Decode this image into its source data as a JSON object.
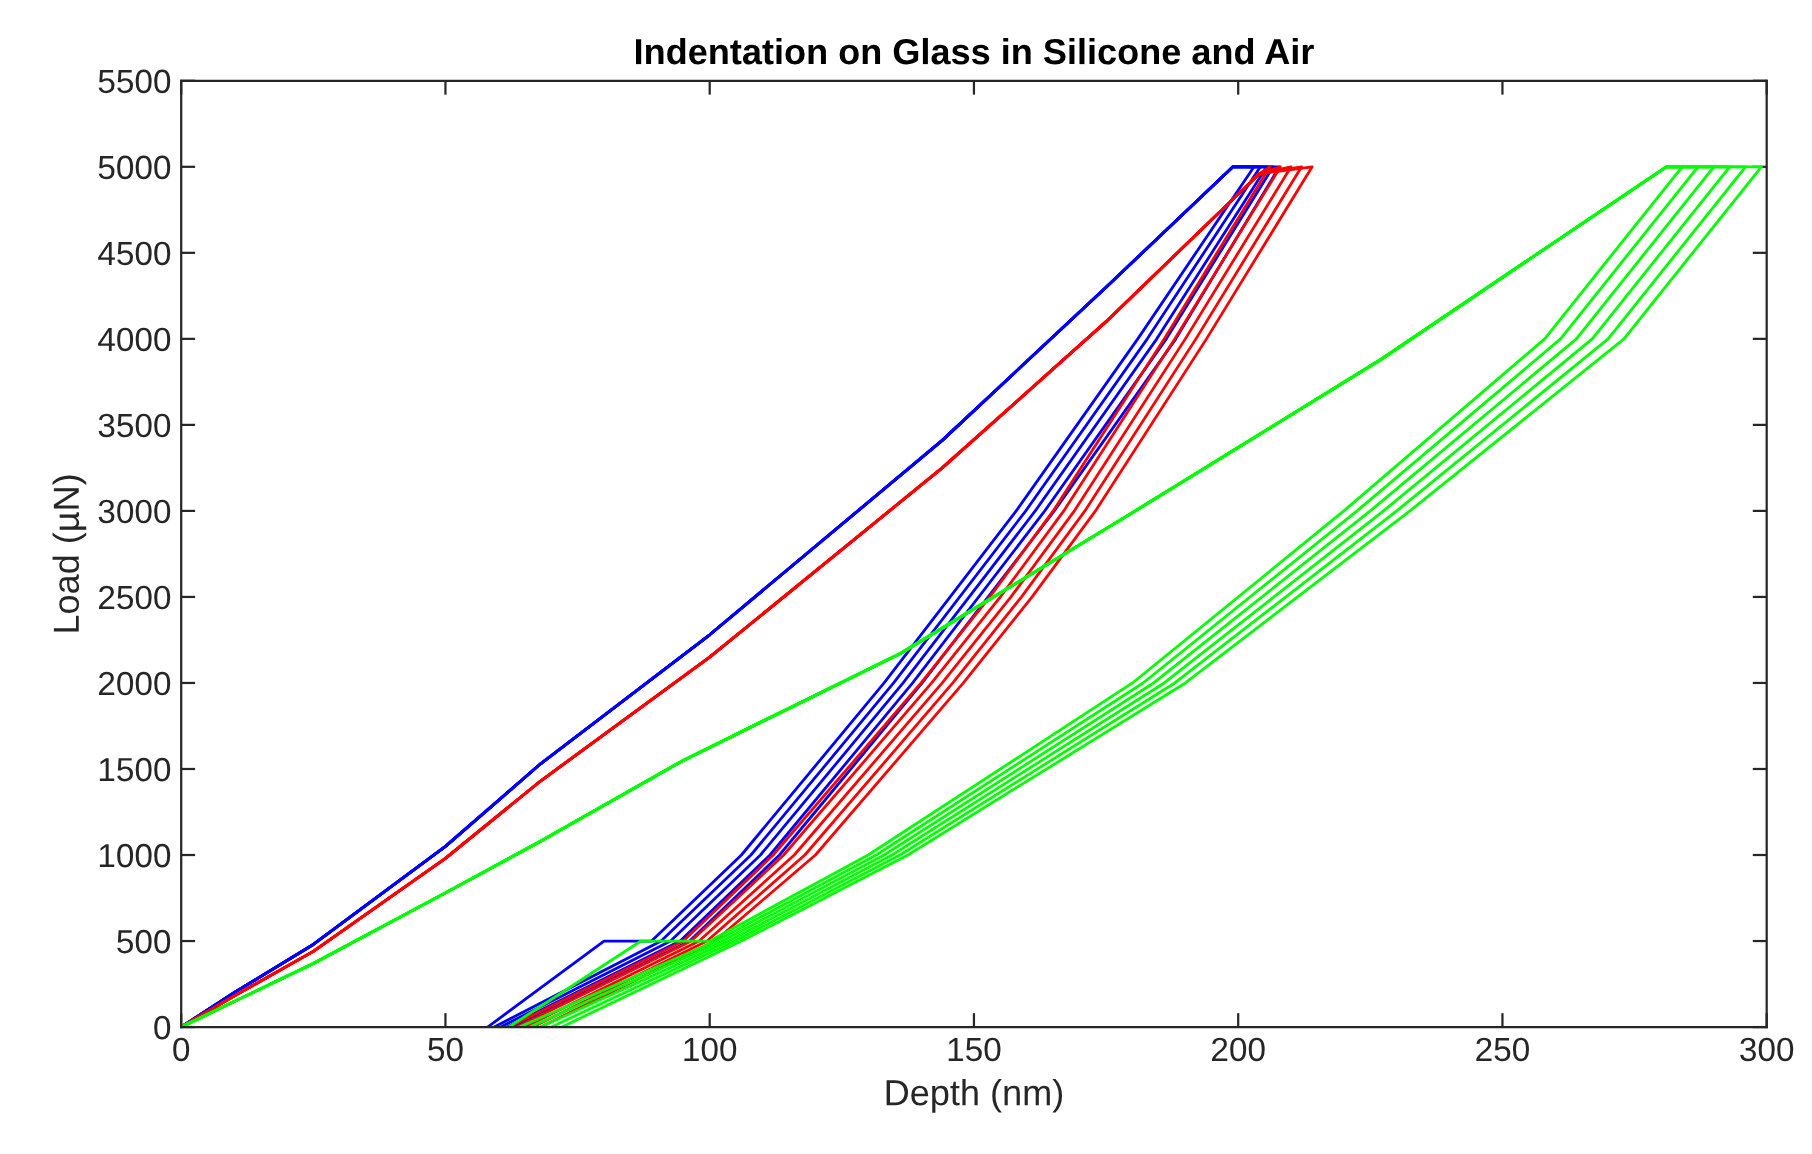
{
  "chart_data": {
    "type": "line",
    "title": "Indentation on Glass in Silicone and Air",
    "xlabel": "Depth (nm)",
    "ylabel": "Load (µN)",
    "xlim": [
      0,
      300
    ],
    "xticks": [
      0,
      50,
      100,
      150,
      200,
      250,
      300
    ],
    "ylim": [
      0,
      5500
    ],
    "yticks": [
      0,
      500,
      1000,
      1500,
      2000,
      2500,
      3000,
      3500,
      4000,
      4500,
      5000,
      5500
    ],
    "grid": false,
    "marker": "none",
    "line_style": "solid",
    "series": [
      {
        "color": "#0000ff",
        "x": [
          0,
          10,
          25,
          50,
          68,
          100,
          144,
          175,
          199,
          203,
          181,
          158,
          133,
          106,
          89,
          80,
          58
        ],
        "values": [
          0,
          200,
          480,
          1050,
          1530,
          2280,
          3410,
          4300,
          5000,
          5000,
          4000,
          3000,
          2000,
          1000,
          500,
          500,
          0
        ]
      },
      {
        "color": "#0000ff",
        "x": [
          0,
          10,
          25,
          50,
          68,
          100,
          144,
          175,
          199,
          204.2,
          182.8,
          159.8,
          134.8,
          107.8,
          90.8,
          59.2
        ],
        "values": [
          0,
          200,
          480,
          1050,
          1530,
          2280,
          3410,
          4300,
          5000,
          5000,
          4000,
          3000,
          2000,
          1000,
          500,
          0
        ]
      },
      {
        "color": "#0000ff",
        "x": [
          0,
          10,
          25,
          50,
          68,
          100,
          144,
          175,
          199,
          205.4,
          184.6,
          161.6,
          136.6,
          109.6,
          92.6,
          60.4
        ],
        "values": [
          0,
          200,
          480,
          1050,
          1530,
          2280,
          3410,
          4300,
          5000,
          5000,
          4000,
          3000,
          2000,
          1000,
          500,
          0
        ]
      },
      {
        "color": "#0000ff",
        "x": [
          0,
          10,
          25,
          50,
          68,
          100,
          144,
          175,
          199,
          206.6,
          186.4,
          163.4,
          138.4,
          111.4,
          94.4,
          61.6
        ],
        "values": [
          0,
          200,
          480,
          1050,
          1530,
          2280,
          3410,
          4300,
          5000,
          5000,
          4000,
          3000,
          2000,
          1000,
          500,
          0
        ]
      },
      {
        "color": "#0000ff",
        "x": [
          0,
          10,
          25,
          50,
          68,
          100,
          144,
          175,
          199,
          207.8,
          188.2,
          165.2,
          140.2,
          113.2,
          96.2,
          62.8
        ],
        "values": [
          0,
          200,
          480,
          1050,
          1530,
          2280,
          3410,
          4300,
          5000,
          5000,
          4000,
          3000,
          2000,
          1000,
          500,
          0
        ]
      },
      {
        "color": "#ff0000",
        "x": [
          0,
          10,
          25,
          50,
          68,
          100,
          144,
          175,
          204,
          206,
          186,
          165,
          153,
          140,
          112,
          95,
          62
        ],
        "values": [
          0,
          180,
          440,
          980,
          1430,
          2150,
          3250,
          4100,
          4960,
          5000,
          4000,
          3000,
          2500,
          2000,
          1000,
          500,
          0
        ]
      },
      {
        "color": "#ff0000",
        "x": [
          0,
          10,
          25,
          50,
          68,
          100,
          144,
          175,
          204,
          208,
          188,
          167,
          155,
          142,
          114,
          96.5,
          63.5
        ],
        "values": [
          0,
          180,
          440,
          980,
          1430,
          2150,
          3250,
          4100,
          4960,
          5000,
          4000,
          3000,
          2500,
          2000,
          1000,
          500,
          0
        ]
      },
      {
        "color": "#ff0000",
        "x": [
          0,
          10,
          25,
          50,
          68,
          100,
          144,
          175,
          204,
          210,
          190,
          169,
          157,
          144,
          116,
          98,
          65
        ],
        "values": [
          0,
          180,
          440,
          980,
          1430,
          2150,
          3250,
          4100,
          4960,
          5000,
          4000,
          3000,
          2500,
          2000,
          1000,
          500,
          0
        ]
      },
      {
        "color": "#ff0000",
        "x": [
          0,
          10,
          25,
          50,
          68,
          100,
          144,
          175,
          204,
          212,
          192,
          171,
          159,
          146,
          118,
          99.5,
          66.5
        ],
        "values": [
          0,
          180,
          440,
          980,
          1430,
          2150,
          3250,
          4100,
          4960,
          5000,
          4000,
          3000,
          2500,
          2000,
          1000,
          500,
          0
        ]
      },
      {
        "color": "#ff0000",
        "x": [
          0,
          10,
          25,
          50,
          68,
          100,
          144,
          175,
          204,
          214,
          194,
          173,
          161,
          148,
          120,
          101,
          68
        ],
        "values": [
          0,
          180,
          440,
          980,
          1430,
          2150,
          3250,
          4100,
          4960,
          5000,
          4000,
          3000,
          2500,
          2000,
          1000,
          500,
          0
        ]
      },
      {
        "color": "#00ff00",
        "x": [
          0,
          25,
          50,
          68,
          95,
          136,
          180,
          227,
          281,
          284,
          258,
          220,
          180,
          130,
          100,
          87,
          62
        ],
        "values": [
          0,
          370,
          780,
          1080,
          1550,
          2170,
          2990,
          3880,
          5000,
          5000,
          4000,
          3000,
          2000,
          1000,
          500,
          500,
          0
        ]
      },
      {
        "color": "#00ff00",
        "x": [
          0,
          25,
          50,
          68,
          95,
          136,
          180,
          227,
          281,
          287,
          261,
          222.5,
          182,
          131.5,
          101.2,
          64
        ],
        "values": [
          0,
          370,
          780,
          1080,
          1550,
          2170,
          2990,
          3880,
          5000,
          5000,
          4000,
          3000,
          2000,
          1000,
          500,
          0
        ]
      },
      {
        "color": "#00ff00",
        "x": [
          0,
          25,
          50,
          68,
          95,
          136,
          180,
          227,
          281,
          290,
          264,
          225,
          184,
          133,
          102.4,
          66
        ],
        "values": [
          0,
          370,
          780,
          1080,
          1550,
          2170,
          2990,
          3880,
          5000,
          5000,
          4000,
          3000,
          2000,
          1000,
          500,
          0
        ]
      },
      {
        "color": "#00ff00",
        "x": [
          0,
          25,
          50,
          68,
          95,
          136,
          180,
          227,
          281,
          293,
          267,
          227.5,
          186,
          134.5,
          103.6,
          68
        ],
        "values": [
          0,
          370,
          780,
          1080,
          1550,
          2170,
          2990,
          3880,
          5000,
          5000,
          4000,
          3000,
          2000,
          1000,
          500,
          0
        ]
      },
      {
        "color": "#00ff00",
        "x": [
          0,
          25,
          50,
          68,
          95,
          136,
          180,
          227,
          281,
          296,
          270,
          230,
          188,
          136,
          104.8,
          70
        ],
        "values": [
          0,
          370,
          780,
          1080,
          1550,
          2170,
          2990,
          3880,
          5000,
          5000,
          4000,
          3000,
          2000,
          1000,
          500,
          0
        ]
      },
      {
        "color": "#00ff00",
        "x": [
          0,
          25,
          50,
          68,
          95,
          136,
          180,
          227,
          281,
          299,
          273,
          232.5,
          190,
          137.5,
          106,
          72
        ],
        "values": [
          0,
          370,
          780,
          1080,
          1550,
          2170,
          2990,
          3880,
          5000,
          5000,
          4000,
          3000,
          2000,
          1000,
          500,
          0
        ]
      }
    ]
  }
}
